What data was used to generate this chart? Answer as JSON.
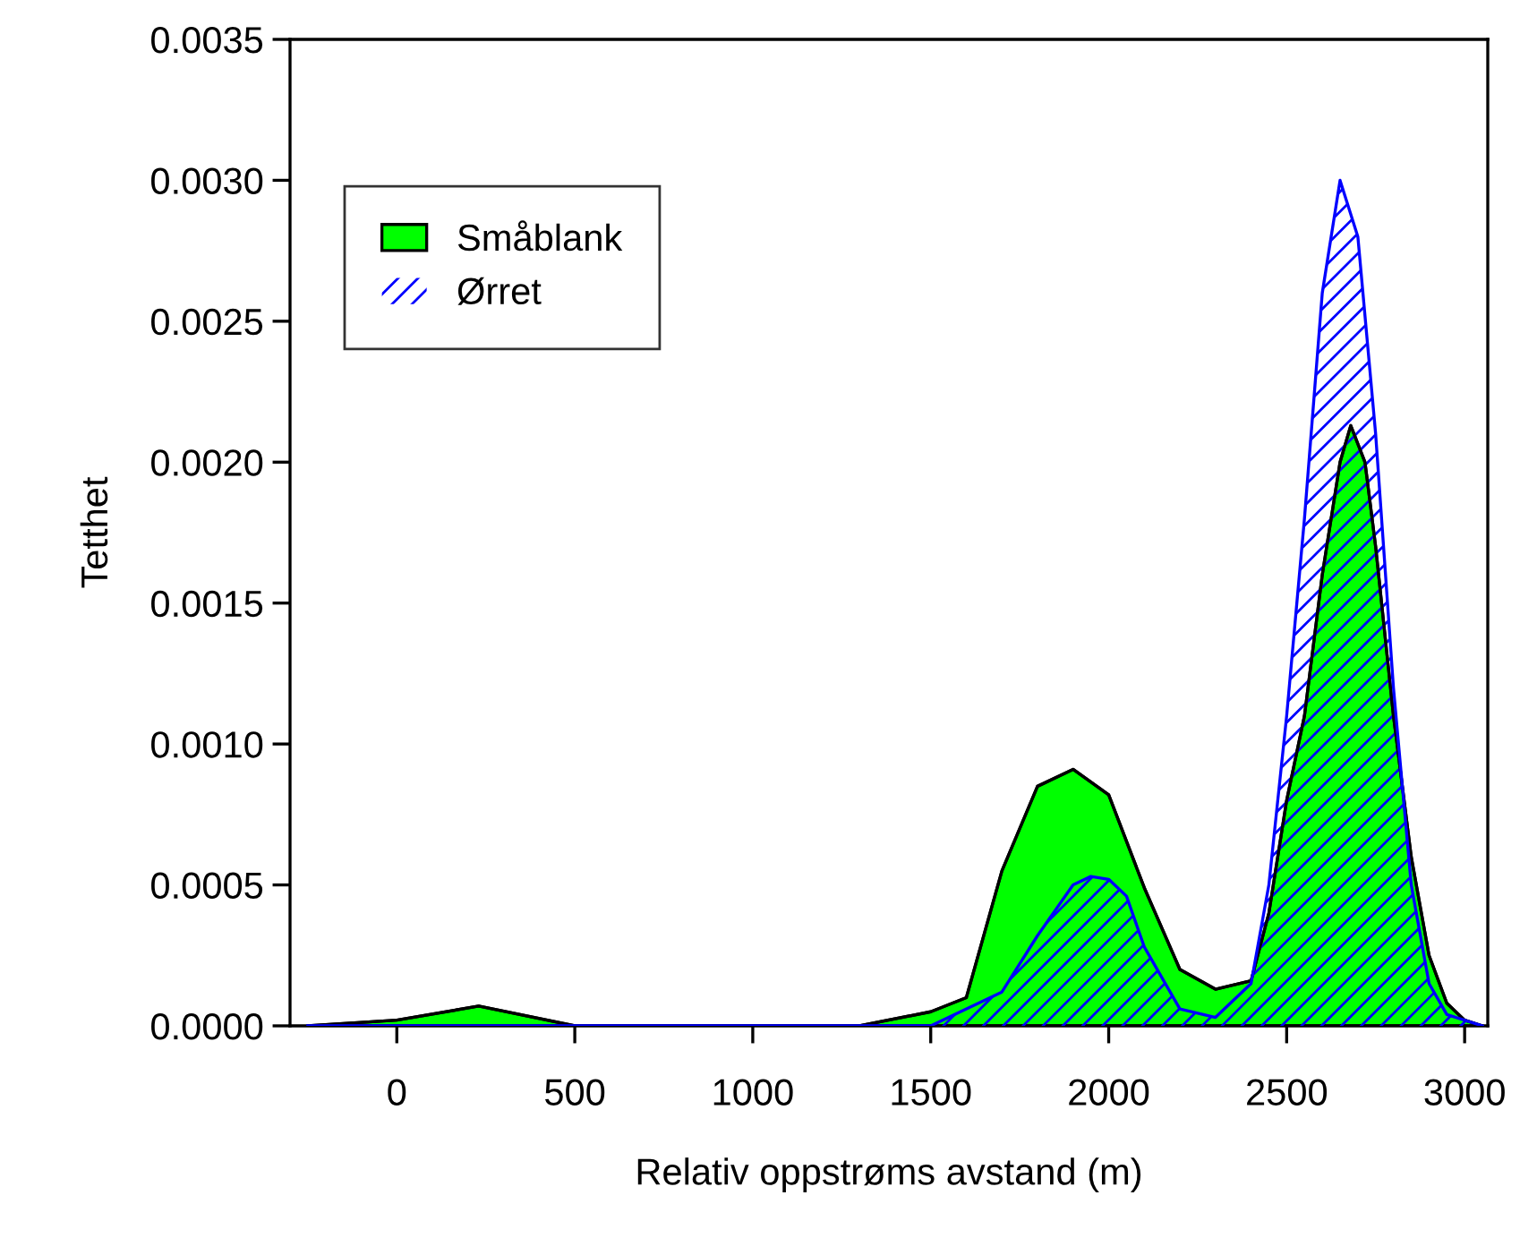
{
  "chart_data": {
    "type": "area",
    "xlabel": "Relativ oppstrøms avstand (m)",
    "ylabel": "Tetthet",
    "xlim": [
      -300,
      3065
    ],
    "ylim": [
      0,
      0.0035
    ],
    "xticks": [
      0,
      500,
      1000,
      1500,
      2000,
      2500,
      3000
    ],
    "yticks": [
      {
        "value": 0,
        "label": "0.0000"
      },
      {
        "value": 0.0005,
        "label": "0.0005"
      },
      {
        "value": 0.001,
        "label": "0.0010"
      },
      {
        "value": 0.0015,
        "label": "0.0015"
      },
      {
        "value": 0.002,
        "label": "0.0020"
      },
      {
        "value": 0.0025,
        "label": "0.0025"
      },
      {
        "value": 0.003,
        "label": "0.0030"
      },
      {
        "value": 0.0035,
        "label": "0.0035"
      }
    ],
    "grid": false,
    "legend": "top left",
    "series": [
      {
        "name": "Småblank",
        "color": "#00ff00",
        "x": [
          -250,
          0,
          230,
          500,
          1000,
          1300,
          1500,
          1600,
          1700,
          1800,
          1900,
          2000,
          2100,
          2200,
          2300,
          2400,
          2450,
          2500,
          2550,
          2600,
          2650,
          2680,
          2720,
          2750,
          2800,
          2850,
          2900,
          2950,
          3000,
          3050
        ],
        "values": [
          0,
          2e-05,
          7e-05,
          0,
          0,
          0,
          5e-05,
          0.0001,
          0.00055,
          0.00085,
          0.00091,
          0.00082,
          0.00049,
          0.0002,
          0.00013,
          0.00016,
          0.0004,
          0.0008,
          0.0011,
          0.0016,
          0.002,
          0.00213,
          0.002,
          0.0017,
          0.0011,
          0.0006,
          0.00025,
          8e-05,
          2e-05,
          0
        ]
      },
      {
        "name": "Ørret",
        "color": "#0000ff",
        "x": [
          -250,
          1500,
          1700,
          1800,
          1900,
          1950,
          2000,
          2050,
          2100,
          2200,
          2300,
          2400,
          2450,
          2500,
          2550,
          2600,
          2650,
          2700,
          2750,
          2800,
          2850,
          2900,
          2950,
          3050
        ],
        "values": [
          0,
          0,
          0.00012,
          0.00032,
          0.0005,
          0.00053,
          0.00052,
          0.00046,
          0.00028,
          6e-05,
          3e-05,
          0.00015,
          0.0005,
          0.0011,
          0.0018,
          0.0026,
          0.003,
          0.0028,
          0.0021,
          0.0012,
          0.0005,
          0.00015,
          4e-05,
          0
        ]
      }
    ]
  }
}
